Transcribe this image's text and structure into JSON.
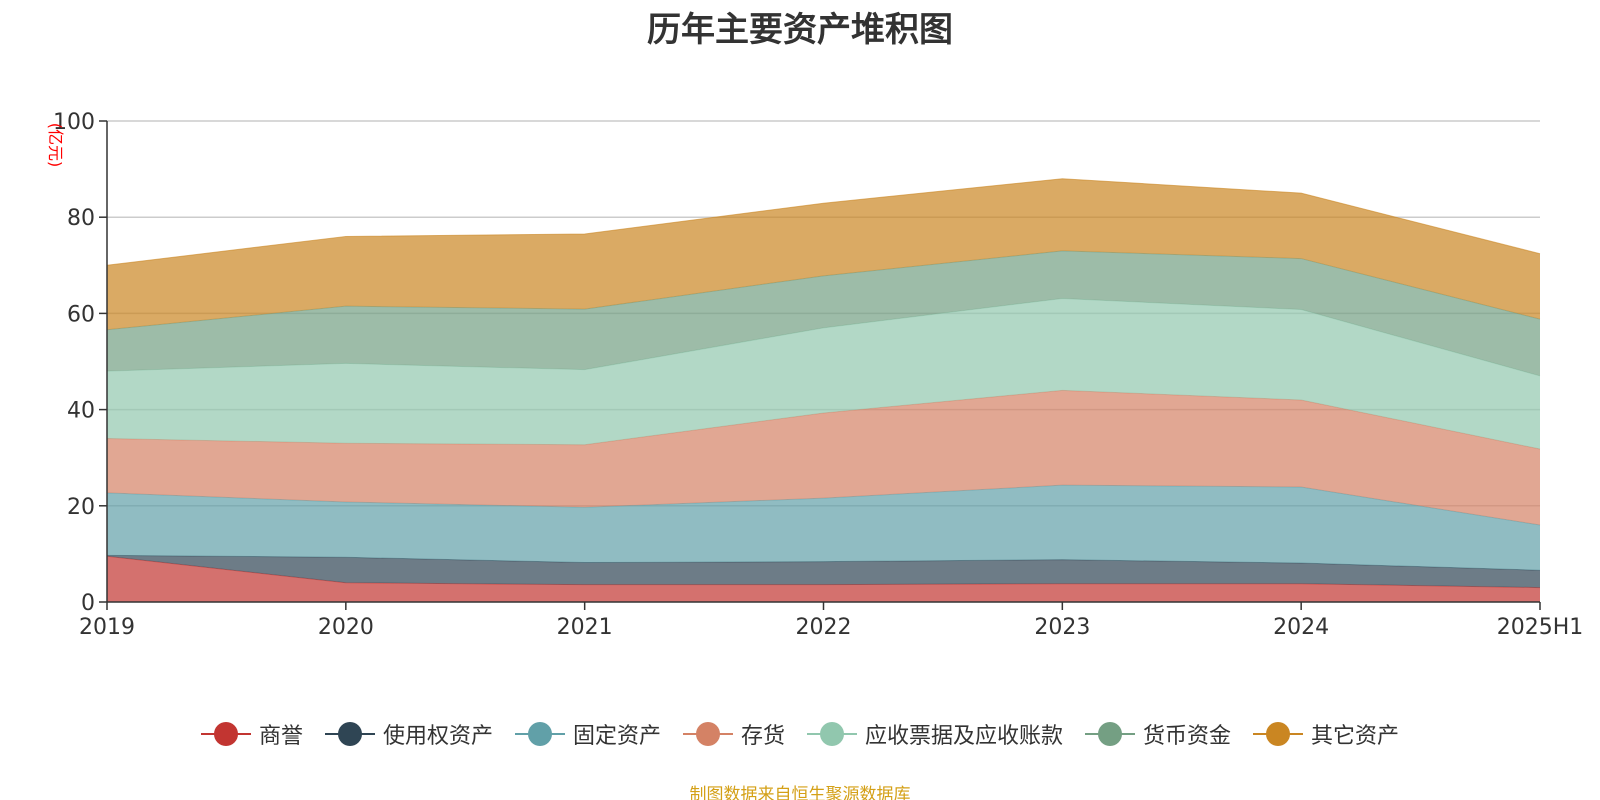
{
  "chart_data": {
    "type": "area",
    "stacked": true,
    "title": "历年主要资产堆积图",
    "unit": "(亿元)",
    "categories": [
      "2019",
      "2020",
      "2021",
      "2022",
      "2023",
      "2024",
      "2025H1"
    ],
    "ylim": [
      0,
      100
    ],
    "yticks": [
      "0",
      "20",
      "40",
      "60",
      "80",
      "100"
    ],
    "grid": true,
    "legend_position": "bottom",
    "series": [
      {
        "name": "商誉",
        "color": "#c23531",
        "values": [
          9.5,
          4.0,
          3.6,
          3.6,
          3.8,
          3.8,
          3.0
        ]
      },
      {
        "name": "使用权资产",
        "color": "#2f4554",
        "values": [
          0.2,
          5.3,
          4.6,
          4.8,
          5.0,
          4.3,
          3.6
        ]
      },
      {
        "name": "固定资产",
        "color": "#61a0a8",
        "values": [
          13.0,
          11.5,
          11.5,
          13.2,
          15.5,
          15.8,
          9.4
        ]
      },
      {
        "name": "存货",
        "color": "#d48265",
        "values": [
          11.3,
          12.2,
          13.0,
          17.7,
          19.7,
          18.1,
          15.8
        ]
      },
      {
        "name": "应收票据及应收账款",
        "color": "#91c7ae",
        "values": [
          14.0,
          16.6,
          15.6,
          17.7,
          19.1,
          18.8,
          15.2
        ]
      },
      {
        "name": "货币资金",
        "color": "#749f83",
        "values": [
          8.6,
          11.9,
          12.6,
          10.8,
          9.9,
          10.6,
          11.8
        ]
      },
      {
        "name": "其它资产",
        "color": "#ca8622",
        "values": [
          13.4,
          14.5,
          15.6,
          15.1,
          15.0,
          13.6,
          13.6
        ]
      }
    ],
    "source_note": "制图数据来自恒生聚源数据库"
  }
}
